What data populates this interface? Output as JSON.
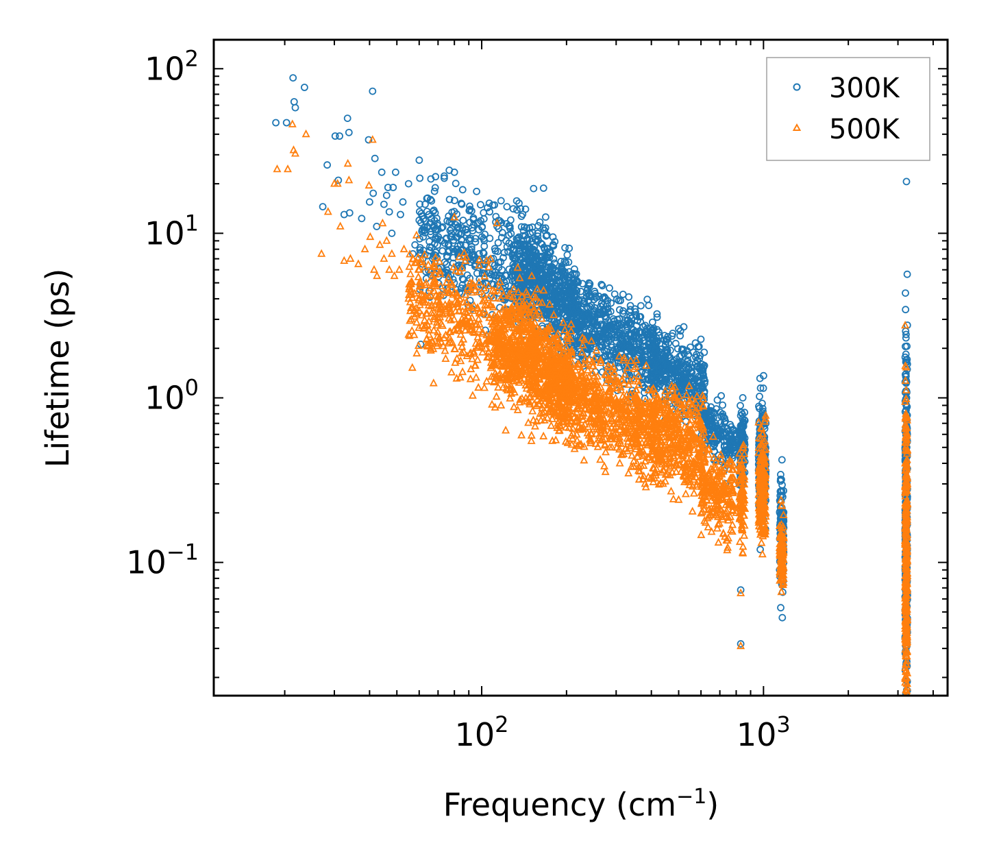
{
  "chart_data": {
    "type": "scatter",
    "xscale": "log",
    "yscale": "log",
    "xlabel": "Frequency (cm",
    "xlabel_sup": "−1",
    "xlabel_close": ")",
    "ylabel": "Lifetime (ps)",
    "xlim": [
      11.2,
      4500
    ],
    "ylim": [
      0.0155,
      150
    ],
    "x_ticks": [
      {
        "value": 100,
        "base": "10",
        "exp": "2"
      },
      {
        "value": 1000,
        "base": "10",
        "exp": "3"
      }
    ],
    "y_ticks": [
      {
        "value": 100,
        "base": "10",
        "exp": "2"
      },
      {
        "value": 10,
        "base": "10",
        "exp": "1"
      },
      {
        "value": 1,
        "base": "10",
        "exp": "0"
      },
      {
        "value": 0.1,
        "base": "10",
        "exp": "−1"
      }
    ],
    "legend_position": "top-right",
    "series": [
      {
        "name": "300K",
        "marker": "circle",
        "color": "#1f77b4",
        "points": [
          [
            18.6,
            47
          ],
          [
            20.3,
            47
          ],
          [
            21.4,
            88
          ],
          [
            21.6,
            63
          ],
          [
            21.8,
            58
          ],
          [
            23.5,
            77
          ],
          [
            27.3,
            14.5
          ],
          [
            28.3,
            26
          ],
          [
            30.2,
            39
          ],
          [
            31.0,
            21
          ],
          [
            31.3,
            39
          ],
          [
            32.5,
            13
          ],
          [
            33.4,
            50
          ],
          [
            33.8,
            41
          ],
          [
            34.0,
            13.3
          ],
          [
            37.5,
            12.3
          ],
          [
            39.7,
            37
          ],
          [
            40.0,
            15.5
          ],
          [
            41.0,
            73
          ],
          [
            41.2,
            17.5
          ],
          [
            41.8,
            28.5
          ],
          [
            42.4,
            11
          ],
          [
            44.2,
            23.5
          ],
          [
            45.0,
            15
          ],
          [
            46.0,
            17
          ],
          [
            46.5,
            19
          ],
          [
            47.0,
            13.5
          ],
          [
            48.0,
            10
          ],
          [
            48.5,
            19
          ],
          [
            49.5,
            23.5
          ],
          [
            51.5,
            13
          ],
          [
            52.5,
            15.5
          ],
          [
            55.0,
            20
          ],
          [
            57.0,
            7.5
          ],
          [
            58.0,
            8.5
          ],
          [
            60.0,
            12
          ],
          [
            62.0,
            9.5
          ],
          [
            63.0,
            15
          ],
          [
            65.0,
            13
          ],
          [
            67.0,
            7
          ],
          [
            68.0,
            18
          ],
          [
            69.0,
            10.5
          ],
          [
            72.0,
            9
          ],
          [
            75.0,
            6.5
          ],
          [
            78.0,
            10
          ],
          [
            80.0,
            23.5
          ],
          [
            82.0,
            8
          ],
          [
            85.0,
            15
          ],
          [
            88.0,
            10.5
          ],
          [
            90.0,
            7
          ],
          [
            92.0,
            8
          ],
          [
            95.0,
            6.5
          ],
          [
            98.0,
            7.5
          ],
          [
            102.0,
            6.5
          ],
          [
            108.0,
            7
          ],
          [
            112.0,
            5.5
          ],
          [
            118.0,
            6
          ],
          [
            122.0,
            9
          ],
          [
            126.0,
            11
          ],
          [
            130.0,
            8.5
          ],
          [
            135.0,
            6
          ],
          [
            140.0,
            7
          ],
          [
            145.0,
            8.5
          ],
          [
            150.0,
            6.5
          ],
          [
            155.0,
            5.5
          ],
          [
            160.0,
            5
          ],
          [
            168.0,
            5.5
          ],
          [
            175.0,
            6
          ],
          [
            182.0,
            6
          ],
          [
            190.0,
            5
          ],
          [
            198.0,
            4.5
          ],
          [
            208.0,
            4
          ],
          [
            218.0,
            3.5
          ],
          [
            228.0,
            3
          ],
          [
            240.0,
            3.2
          ],
          [
            252.0,
            3
          ],
          [
            265.0,
            2.8
          ],
          [
            280.0,
            2.6
          ],
          [
            295.0,
            2.4
          ],
          [
            310.0,
            2.3
          ],
          [
            325.0,
            2.1
          ],
          [
            340.0,
            2
          ],
          [
            360.0,
            1.8
          ],
          [
            380.0,
            1.7
          ],
          [
            400.0,
            1.65
          ],
          [
            420.0,
            2.2
          ],
          [
            440.0,
            1.6
          ],
          [
            455.0,
            1.55
          ],
          [
            470.0,
            1.4
          ],
          [
            490.0,
            1.5
          ],
          [
            510.0,
            1.6
          ],
          [
            530.0,
            1.4
          ],
          [
            550.0,
            1.3
          ],
          [
            570.0,
            1.1
          ],
          [
            590.0,
            1.0
          ],
          [
            610.0,
            0.8
          ],
          [
            640.0,
            0.6
          ],
          [
            670.0,
            0.52
          ],
          [
            690.0,
            0.65
          ],
          [
            710.0,
            0.58
          ],
          [
            730.0,
            0.48
          ],
          [
            760.0,
            0.45
          ],
          [
            800.0,
            0.5
          ],
          [
            830.0,
            0.78
          ],
          [
            845.0,
            0.7
          ],
          [
            830.0,
            0.068
          ],
          [
            830.0,
            0.032
          ],
          [
            990.0,
            0.78
          ],
          [
            1000.0,
            0.75
          ],
          [
            1010.0,
            0.65
          ],
          [
            1150.0,
            0.32
          ],
          [
            1160.0,
            0.27
          ],
          [
            1170.0,
            0.25
          ],
          [
            3200.0,
            1.65
          ],
          [
            3200.0,
            1.1
          ],
          [
            3210.0,
            0.9
          ],
          [
            3205.0,
            0.6
          ],
          [
            3215.0,
            0.4
          ],
          [
            3220.0,
            1.25
          ],
          [
            3225.0,
            1.08
          ],
          [
            3200.0,
            0.2
          ],
          [
            3210.0,
            0.1
          ],
          [
            3220.0,
            0.05
          ],
          [
            3225.0,
            0.025
          ]
        ],
        "cloud": [
          {
            "x": [
              60,
              180
            ],
            "center": [
              9,
              5.5
            ],
            "spread": 0.18,
            "count": 520
          },
          {
            "x": [
              130,
              220
            ],
            "center": [
              5.5,
              3.5
            ],
            "spread": 0.14,
            "count": 520
          },
          {
            "x": [
              200,
              420
            ],
            "center": [
              3.2,
              1.7
            ],
            "spread": 0.13,
            "count": 620
          },
          {
            "x": [
              400,
              620
            ],
            "center": [
              1.6,
              1.1
            ],
            "spread": 0.12,
            "count": 380
          },
          {
            "x": [
              600,
              800
            ],
            "center": [
              0.7,
              0.5
            ],
            "spread": 0.08,
            "count": 180
          },
          {
            "x": [
              820,
              860
            ],
            "center": [
              0.5,
              0.5
            ],
            "spread": 0.12,
            "count": 110
          },
          {
            "x": [
              960,
              1020
            ],
            "center": [
              0.45,
              0.45
            ],
            "spread": 0.17,
            "count": 200
          },
          {
            "x": [
              1140,
              1180
            ],
            "center": [
              0.15,
              0.15
            ],
            "spread": 0.17,
            "count": 110
          },
          {
            "x": [
              3180,
              3240
            ],
            "center": [
              0.15,
              0.15
            ],
            "spread": 0.6,
            "count": 300
          }
        ]
      },
      {
        "name": "500K",
        "marker": "triangle",
        "color": "#ff7f0e",
        "points": [
          [
            18.8,
            24.5
          ],
          [
            20.5,
            24.5
          ],
          [
            21.3,
            46
          ],
          [
            21.5,
            32
          ],
          [
            21.8,
            30.5
          ],
          [
            23.8,
            40
          ],
          [
            27.0,
            7.5
          ],
          [
            28.5,
            13.5
          ],
          [
            30.0,
            20
          ],
          [
            30.8,
            20
          ],
          [
            31.5,
            11
          ],
          [
            32.5,
            6.8
          ],
          [
            33.5,
            26.5
          ],
          [
            33.8,
            21
          ],
          [
            34.2,
            7
          ],
          [
            36.5,
            6.5
          ],
          [
            38.5,
            8
          ],
          [
            39.8,
            19.5
          ],
          [
            40.2,
            9.5
          ],
          [
            41.0,
            37
          ],
          [
            41.5,
            6
          ],
          [
            42.5,
            5.5
          ],
          [
            43.5,
            8.5
          ],
          [
            44.5,
            11.5
          ],
          [
            45.0,
            7
          ],
          [
            46.0,
            9
          ],
          [
            47.0,
            6
          ],
          [
            48.0,
            7.5
          ],
          [
            49.0,
            5.5
          ],
          [
            51.0,
            6
          ],
          [
            53.0,
            8
          ],
          [
            55.0,
            4
          ],
          [
            57.0,
            7
          ],
          [
            58.5,
            3.5
          ],
          [
            60.0,
            6
          ],
          [
            62.0,
            3.8
          ],
          [
            63.5,
            5
          ],
          [
            66.0,
            4.2
          ],
          [
            68.0,
            3
          ],
          [
            70.0,
            3.5
          ],
          [
            72.0,
            2.8
          ],
          [
            74.5,
            2.4
          ],
          [
            78.0,
            3.3
          ],
          [
            80.0,
            12.5
          ],
          [
            82.0,
            3.8
          ],
          [
            85.0,
            2.8
          ],
          [
            88.0,
            2.8
          ],
          [
            92.0,
            2.6
          ],
          [
            98.0,
            2.6
          ],
          [
            104.0,
            2.4
          ],
          [
            110.0,
            2.2
          ],
          [
            118.0,
            2.5
          ],
          [
            126.0,
            2.2
          ],
          [
            135.0,
            1.9
          ],
          [
            145.0,
            1.8
          ],
          [
            155.0,
            1.7
          ],
          [
            165.0,
            0.9
          ],
          [
            175.0,
            0.85
          ],
          [
            190.0,
            0.78
          ],
          [
            205.0,
            0.75
          ],
          [
            222.0,
            0.52
          ],
          [
            245.0,
            0.6
          ],
          [
            265.0,
            0.55
          ],
          [
            290.0,
            0.5
          ],
          [
            315.0,
            0.45
          ],
          [
            340.0,
            0.38
          ],
          [
            360.0,
            0.36
          ],
          [
            380.0,
            0.3
          ],
          [
            410.0,
            0.35
          ],
          [
            440.0,
            0.3
          ],
          [
            470.0,
            0.27
          ],
          [
            500.0,
            0.24
          ],
          [
            530.0,
            0.26
          ],
          [
            560.0,
            0.35
          ],
          [
            590.0,
            0.5
          ],
          [
            620.0,
            0.32
          ],
          [
            660.0,
            0.2
          ],
          [
            690.0,
            0.17
          ],
          [
            720.0,
            0.15
          ],
          [
            750.0,
            0.14
          ],
          [
            800.0,
            0.2
          ],
          [
            830.0,
            0.065
          ],
          [
            830.0,
            0.031
          ],
          [
            845.0,
            0.5
          ],
          [
            990.0,
            0.52
          ],
          [
            1000.0,
            0.45
          ],
          [
            1010.0,
            0.2
          ],
          [
            1150.0,
            0.12
          ],
          [
            1160.0,
            0.22
          ],
          [
            1170.0,
            0.08
          ],
          [
            3200.0,
            0.8
          ],
          [
            3210.0,
            0.62
          ],
          [
            3205.0,
            0.3
          ],
          [
            3220.0,
            0.2
          ],
          [
            3225.0,
            0.05
          ],
          [
            3210.0,
            0.02
          ]
        ],
        "cloud": [
          {
            "x": [
              55,
              170
            ],
            "center": [
              4,
              1.8
            ],
            "spread": 0.18,
            "count": 520
          },
          {
            "x": [
              110,
              210
            ],
            "center": [
              2.2,
              1.2
            ],
            "spread": 0.16,
            "count": 700
          },
          {
            "x": [
              170,
              420
            ],
            "center": [
              1.3,
              0.6
            ],
            "spread": 0.14,
            "count": 820
          },
          {
            "x": [
              400,
              620
            ],
            "center": [
              0.62,
              0.5
            ],
            "spread": 0.14,
            "count": 420
          },
          {
            "x": [
              600,
              790
            ],
            "center": [
              0.3,
              0.22
            ],
            "spread": 0.12,
            "count": 220
          },
          {
            "x": [
              820,
              860
            ],
            "center": [
              0.25,
              0.25
            ],
            "spread": 0.14,
            "count": 90
          },
          {
            "x": [
              960,
              1020
            ],
            "center": [
              0.28,
              0.28
            ],
            "spread": 0.17,
            "count": 180
          },
          {
            "x": [
              1140,
              1180
            ],
            "center": [
              0.12,
              0.12
            ],
            "spread": 0.12,
            "count": 110
          },
          {
            "x": [
              3180,
              3240
            ],
            "center": [
              0.09,
              0.09
            ],
            "spread": 0.5,
            "count": 320
          }
        ]
      }
    ]
  }
}
